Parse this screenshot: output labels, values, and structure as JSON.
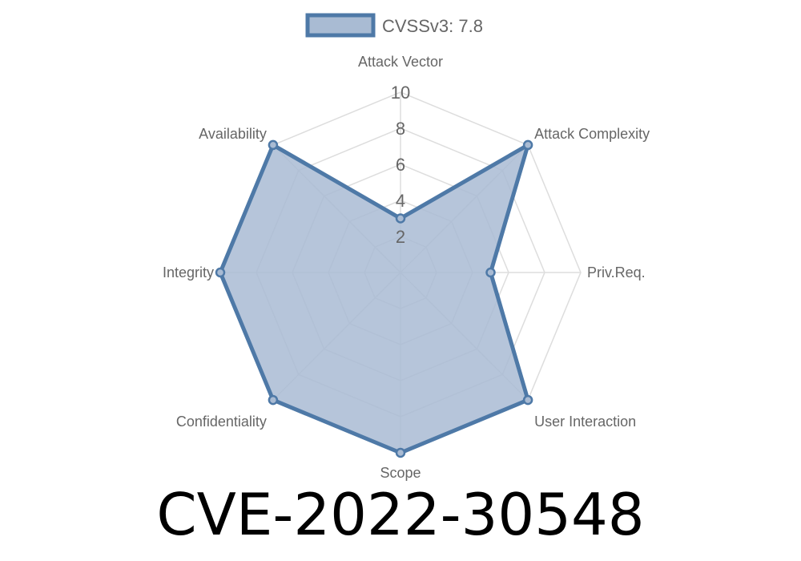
{
  "chart_data": {
    "type": "radar",
    "categories": [
      "Attack Vector",
      "Attack Complexity",
      "Priv.Req.",
      "User Interaction",
      "Scope",
      "Confidentiality",
      "Integrity",
      "Availability"
    ],
    "series": [
      {
        "name": "CVSSv3: 7.8",
        "values": [
          3,
          10,
          5,
          10,
          10,
          10,
          10,
          10
        ]
      }
    ],
    "rlim": [
      0,
      10
    ],
    "ticks": [
      "2",
      "4",
      "6",
      "8",
      "10"
    ],
    "grid": true,
    "legend": "top",
    "colors": {
      "line": "#4e79a7",
      "fill": "#a9bbd3",
      "grid": "#dddddd"
    }
  },
  "title": "CVE-2022-30548"
}
